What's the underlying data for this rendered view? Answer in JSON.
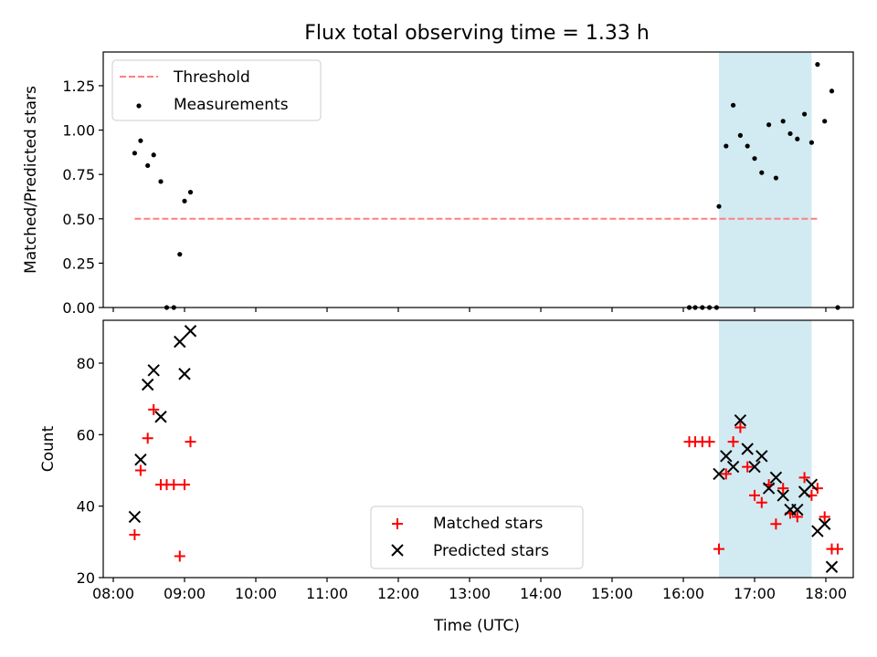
{
  "figure": {
    "title": "Flux total observing time = 1.33 h",
    "xlabel": "Time (UTC)",
    "x_ticks": [
      "08:00",
      "09:00",
      "10:00",
      "11:00",
      "12:00",
      "13:00",
      "14:00",
      "15:00",
      "16:00",
      "17:00",
      "18:00"
    ],
    "highlight_span": {
      "start": "16:30",
      "end": "17:48",
      "color": "#add8e6"
    }
  },
  "chart_data": [
    {
      "type": "scatter",
      "ylabel": "Matched/Predicted stars",
      "ylim": [
        0,
        1.44
      ],
      "y_ticks": [
        "0.00",
        "0.25",
        "0.50",
        "0.75",
        "1.00",
        "1.25"
      ],
      "legend": {
        "placement": "top-left",
        "entries": [
          "Threshold",
          "Measurements"
        ]
      },
      "threshold": {
        "name": "Threshold",
        "value": 0.5,
        "from": "08:18",
        "to": "17:53",
        "color": "#ff7f7f",
        "style": "dashed"
      },
      "series": [
        {
          "name": "Measurements",
          "color": "#000000",
          "marker": "dot",
          "points": [
            [
              "08:18",
              0.87
            ],
            [
              "08:23",
              0.94
            ],
            [
              "08:29",
              0.8
            ],
            [
              "08:34",
              0.86
            ],
            [
              "08:40",
              0.71
            ],
            [
              "08:45",
              0.0
            ],
            [
              "08:51",
              0.0
            ],
            [
              "08:56",
              0.3
            ],
            [
              "09:00",
              0.6
            ],
            [
              "09:05",
              0.65
            ],
            [
              "16:05",
              0.0
            ],
            [
              "16:10",
              0.0
            ],
            [
              "16:16",
              0.0
            ],
            [
              "16:22",
              0.0
            ],
            [
              "16:28",
              0.0
            ],
            [
              "16:30",
              0.57
            ],
            [
              "16:36",
              0.91
            ],
            [
              "16:42",
              1.14
            ],
            [
              "16:48",
              0.97
            ],
            [
              "16:54",
              0.91
            ],
            [
              "17:00",
              0.84
            ],
            [
              "17:06",
              0.76
            ],
            [
              "17:12",
              1.03
            ],
            [
              "17:18",
              0.73
            ],
            [
              "17:24",
              1.05
            ],
            [
              "17:30",
              0.98
            ],
            [
              "17:36",
              0.95
            ],
            [
              "17:42",
              1.09
            ],
            [
              "17:48",
              0.93
            ],
            [
              "17:53",
              1.37
            ],
            [
              "17:59",
              1.05
            ],
            [
              "18:05",
              1.22
            ],
            [
              "18:10",
              0.0
            ]
          ]
        }
      ]
    },
    {
      "type": "scatter",
      "ylabel": "Count",
      "ylim": [
        20,
        92
      ],
      "y_ticks": [
        "20",
        "40",
        "60",
        "80"
      ],
      "legend": {
        "placement": "bottom-center",
        "entries": [
          "Matched stars",
          "Predicted stars"
        ]
      },
      "series": [
        {
          "name": "Matched stars",
          "color": "#ff0000",
          "marker": "plus",
          "points": [
            [
              "08:18",
              32
            ],
            [
              "08:23",
              50
            ],
            [
              "08:29",
              59
            ],
            [
              "08:34",
              67
            ],
            [
              "08:40",
              46
            ],
            [
              "08:45",
              46
            ],
            [
              "08:51",
              46
            ],
            [
              "08:56",
              26
            ],
            [
              "09:00",
              46
            ],
            [
              "09:05",
              58
            ],
            [
              "16:05",
              58
            ],
            [
              "16:10",
              58
            ],
            [
              "16:16",
              58
            ],
            [
              "16:22",
              58
            ],
            [
              "16:30",
              28
            ],
            [
              "16:36",
              49
            ],
            [
              "16:42",
              58
            ],
            [
              "16:48",
              62
            ],
            [
              "16:54",
              51
            ],
            [
              "17:00",
              43
            ],
            [
              "17:06",
              41
            ],
            [
              "17:12",
              46
            ],
            [
              "17:18",
              35
            ],
            [
              "17:24",
              45
            ],
            [
              "17:30",
              38
            ],
            [
              "17:36",
              37
            ],
            [
              "17:42",
              48
            ],
            [
              "17:48",
              43
            ],
            [
              "17:53",
              45
            ],
            [
              "17:59",
              37
            ],
            [
              "18:05",
              28
            ],
            [
              "18:10",
              28
            ]
          ]
        },
        {
          "name": "Predicted stars",
          "color": "#000000",
          "marker": "x",
          "points": [
            [
              "08:18",
              37
            ],
            [
              "08:23",
              53
            ],
            [
              "08:29",
              74
            ],
            [
              "08:34",
              78
            ],
            [
              "08:40",
              65
            ],
            [
              "08:56",
              86
            ],
            [
              "09:00",
              77
            ],
            [
              "09:05",
              89
            ],
            [
              "16:30",
              49
            ],
            [
              "16:36",
              54
            ],
            [
              "16:42",
              51
            ],
            [
              "16:48",
              64
            ],
            [
              "16:54",
              56
            ],
            [
              "17:00",
              51
            ],
            [
              "17:06",
              54
            ],
            [
              "17:12",
              45
            ],
            [
              "17:18",
              48
            ],
            [
              "17:24",
              43
            ],
            [
              "17:30",
              39
            ],
            [
              "17:36",
              39
            ],
            [
              "17:42",
              44
            ],
            [
              "17:48",
              46
            ],
            [
              "17:53",
              33
            ],
            [
              "17:59",
              35
            ],
            [
              "18:05",
              23
            ]
          ]
        }
      ]
    }
  ]
}
